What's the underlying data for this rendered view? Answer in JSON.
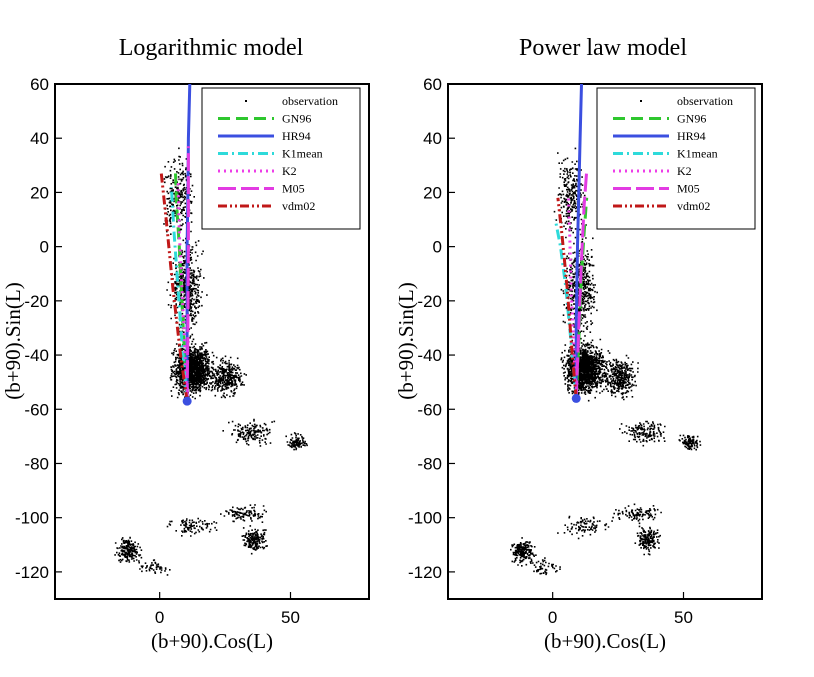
{
  "chart_data": [
    {
      "type": "line",
      "title": "Logarithmic model",
      "xlabel": "(b+90).Cos(L)",
      "ylabel": "(b+90).Sin(L)",
      "xlim": [
        -40,
        80
      ],
      "ylim": [
        -130,
        60
      ],
      "xticks": [
        0,
        50
      ],
      "yticks": [
        60,
        40,
        20,
        0,
        -20,
        -40,
        -60,
        -80,
        -100,
        -120
      ],
      "legend_position": "top-right",
      "marker": {
        "x": 10.5,
        "y": -57,
        "color": "#3b4fe0"
      },
      "observation_clusters": [
        {
          "cx": 12,
          "cy": -45,
          "rx": 10,
          "ry": 12,
          "n": 1400
        },
        {
          "cx": 10,
          "cy": -15,
          "rx": 8,
          "ry": 22,
          "n": 500
        },
        {
          "cx": 7,
          "cy": 20,
          "rx": 7,
          "ry": 20,
          "n": 260
        },
        {
          "cx": 25,
          "cy": -48,
          "rx": 9,
          "ry": 9,
          "n": 350
        },
        {
          "cx": 35,
          "cy": -68,
          "rx": 12,
          "ry": 6,
          "n": 150
        },
        {
          "cx": 52,
          "cy": -72,
          "rx": 5,
          "ry": 4,
          "n": 100
        },
        {
          "cx": 32,
          "cy": -98,
          "rx": 12,
          "ry": 4,
          "n": 100
        },
        {
          "cx": 36,
          "cy": -108,
          "rx": 6,
          "ry": 6,
          "n": 170
        },
        {
          "cx": -12,
          "cy": -112,
          "rx": 6,
          "ry": 6,
          "n": 200
        },
        {
          "cx": 12,
          "cy": -103,
          "rx": 12,
          "ry": 5,
          "n": 90
        },
        {
          "cx": -3,
          "cy": -118,
          "rx": 8,
          "ry": 4,
          "n": 50
        }
      ],
      "series": [
        {
          "name": "observation",
          "style": "dots",
          "color": "#000000",
          "x": [],
          "y": []
        },
        {
          "name": "GN96",
          "style": "dash",
          "color": "#2ec72e",
          "x": [
            10.5,
            9.5,
            8.5,
            7.5,
            6.5,
            6
          ],
          "y": [
            -57,
            -40,
            -20,
            0,
            15,
            28
          ]
        },
        {
          "name": "HR94",
          "style": "solid",
          "color": "#3b4fe0",
          "x": [
            10.5,
            10.5,
            10.5,
            10.5,
            10.8,
            11,
            11.5
          ],
          "y": [
            -57,
            -40,
            -20,
            0,
            20,
            40,
            60
          ]
        },
        {
          "name": "K1mean",
          "style": "dashdot",
          "color": "#2edada",
          "x": [
            10.5,
            8.5,
            7,
            5.5,
            4.5
          ],
          "y": [
            -57,
            -35,
            -15,
            5,
            22
          ]
        },
        {
          "name": "K2",
          "style": "dot",
          "color": "#ee3ee8",
          "x": [
            10.5,
            9.5,
            8.5,
            7.5,
            7
          ],
          "y": [
            -57,
            -35,
            -15,
            5,
            25
          ]
        },
        {
          "name": "M05",
          "style": "longdash",
          "color": "#e23be2",
          "x": [
            10.5,
            10.8,
            11,
            11,
            11
          ],
          "y": [
            -57,
            -30,
            0,
            20,
            37
          ]
        },
        {
          "name": "vdm02",
          "style": "dashdotdot",
          "color": "#c01818",
          "x": [
            10.5,
            8,
            5,
            2.5,
            0.5
          ],
          "y": [
            -57,
            -40,
            -15,
            10,
            28
          ]
        }
      ]
    },
    {
      "type": "line",
      "title": "Power law model",
      "xlabel": "(b+90).Cos(L)",
      "ylabel": "(b+90).Sin(L)",
      "xlim": [
        -40,
        80
      ],
      "ylim": [
        -130,
        60
      ],
      "xticks": [
        0,
        50
      ],
      "yticks": [
        60,
        40,
        20,
        0,
        -20,
        -40,
        -60,
        -80,
        -100,
        -120
      ],
      "legend_position": "top-right",
      "marker": {
        "x": 9,
        "y": -56,
        "color": "#3b4fe0"
      },
      "observation_clusters": [
        {
          "cx": 12,
          "cy": -45,
          "rx": 10,
          "ry": 12,
          "n": 1400
        },
        {
          "cx": 10,
          "cy": -15,
          "rx": 8,
          "ry": 22,
          "n": 500
        },
        {
          "cx": 7,
          "cy": 20,
          "rx": 7,
          "ry": 20,
          "n": 260
        },
        {
          "cx": 25,
          "cy": -48,
          "rx": 9,
          "ry": 9,
          "n": 350
        },
        {
          "cx": 35,
          "cy": -68,
          "rx": 12,
          "ry": 6,
          "n": 150
        },
        {
          "cx": 52,
          "cy": -72,
          "rx": 5,
          "ry": 4,
          "n": 100
        },
        {
          "cx": 32,
          "cy": -98,
          "rx": 12,
          "ry": 4,
          "n": 100
        },
        {
          "cx": 36,
          "cy": -108,
          "rx": 6,
          "ry": 6,
          "n": 170
        },
        {
          "cx": -12,
          "cy": -112,
          "rx": 6,
          "ry": 6,
          "n": 200
        },
        {
          "cx": 12,
          "cy": -103,
          "rx": 12,
          "ry": 5,
          "n": 90
        },
        {
          "cx": -3,
          "cy": -118,
          "rx": 8,
          "ry": 4,
          "n": 50
        }
      ],
      "series": [
        {
          "name": "observation",
          "style": "dots",
          "color": "#000000",
          "x": [],
          "y": []
        },
        {
          "name": "GN96",
          "style": "dash",
          "color": "#2ec72e",
          "x": [
            9,
            10,
            11,
            12,
            13
          ],
          "y": [
            -56,
            -35,
            -10,
            5,
            18
          ]
        },
        {
          "name": "HR94",
          "style": "solid",
          "color": "#3b4fe0",
          "x": [
            9,
            9,
            9.5,
            10,
            10.5,
            11
          ],
          "y": [
            -56,
            -30,
            0,
            20,
            40,
            60
          ]
        },
        {
          "name": "K1mean",
          "style": "dashdot",
          "color": "#2edada",
          "x": [
            9,
            7,
            5,
            3,
            1
          ],
          "y": [
            -56,
            -35,
            -15,
            0,
            10
          ]
        },
        {
          "name": "K2",
          "style": "dot",
          "color": "#ee3ee8",
          "x": [
            9,
            8,
            7,
            6.5,
            6
          ],
          "y": [
            -56,
            -35,
            -15,
            5,
            18
          ]
        },
        {
          "name": "M05",
          "style": "longdash",
          "color": "#e23be2",
          "x": [
            9,
            10,
            11,
            12,
            13
          ],
          "y": [
            -56,
            -30,
            -5,
            15,
            28
          ]
        },
        {
          "name": "vdm02",
          "style": "dashdotdot",
          "color": "#c01818",
          "x": [
            9,
            7.5,
            5.5,
            3.5,
            2
          ],
          "y": [
            -56,
            -40,
            -15,
            5,
            18
          ]
        }
      ]
    }
  ]
}
